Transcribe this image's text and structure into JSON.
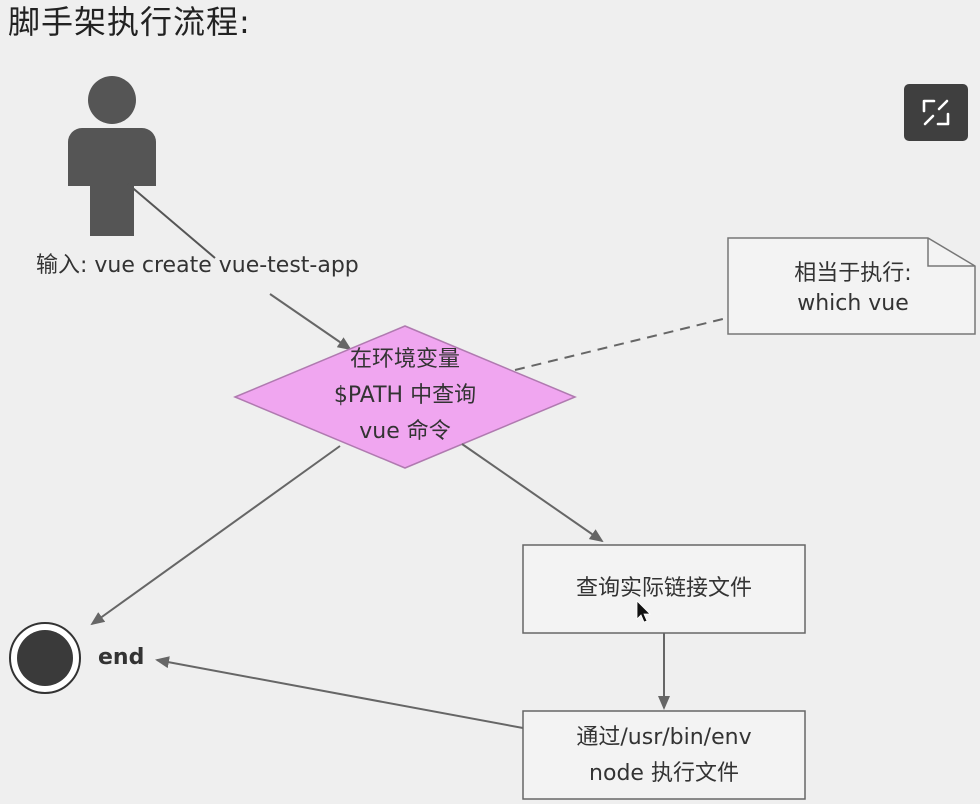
{
  "title": "脚手架执行流程:",
  "actor": {
    "input_label": "输入: vue create vue-test-app"
  },
  "decision": {
    "lines": [
      "在环境变量",
      "$PATH 中查询",
      "vue 命令"
    ]
  },
  "note": {
    "lines": [
      "相当于执行:",
      "which vue"
    ]
  },
  "box_query": {
    "label": "查询实际链接文件"
  },
  "box_exec": {
    "lines": [
      "通过/usr/bin/env",
      "node 执行文件"
    ]
  },
  "end_node": {
    "label": "end"
  },
  "toolbar": {
    "expand_icon": "expand-icon"
  },
  "colors": {
    "decision_fill": "#f0a6f0",
    "decision_stroke": "#b07ab0",
    "box_stroke": "#666666",
    "arrow": "#666666",
    "actor": "#555555"
  }
}
